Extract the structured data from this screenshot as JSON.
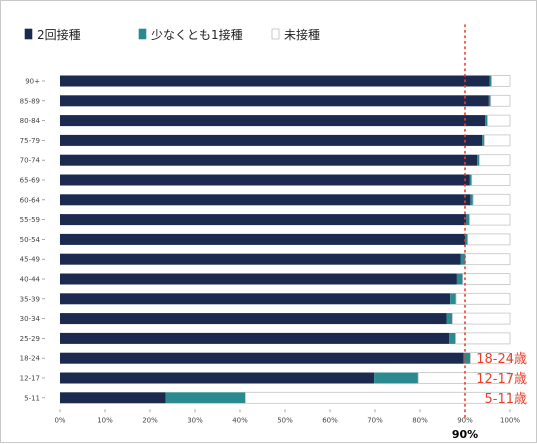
{
  "chart_data": {
    "type": "bar",
    "orientation": "horizontal",
    "stacked": true,
    "categories": [
      "90+",
      "85-89",
      "80-84",
      "75-79",
      "70-74",
      "65-69",
      "60-64",
      "55-59",
      "50-54",
      "45-49",
      "40-44",
      "35-39",
      "30-34",
      "25-29",
      "18-24",
      "12-17",
      "5-11"
    ],
    "series": [
      {
        "name": "2回接種",
        "color": "#1b2a4e",
        "values": [
          95.5,
          95.3,
          94.5,
          93.8,
          92.7,
          91.0,
          91.2,
          90.3,
          90.0,
          89.0,
          88.2,
          86.7,
          85.9,
          86.5,
          89.7,
          69.8,
          23.5
        ]
      },
      {
        "name": "少なくとも1接種",
        "color": "#2a8a8f",
        "values": [
          0.4,
          0.4,
          0.5,
          0.5,
          0.5,
          0.5,
          0.6,
          0.7,
          0.6,
          1.1,
          1.3,
          1.3,
          1.3,
          1.4,
          1.5,
          9.8,
          17.7
        ]
      },
      {
        "name": "未接種",
        "color": "#ffffff",
        "values": [
          4.1,
          4.3,
          5.0,
          5.7,
          6.8,
          8.5,
          8.2,
          9.0,
          9.4,
          9.9,
          10.5,
          12.0,
          12.8,
          12.1,
          8.8,
          20.4,
          58.8
        ]
      }
    ],
    "xlim": [
      0,
      100
    ],
    "xticks": [
      "0%",
      "10%",
      "20%",
      "30%",
      "40%",
      "50%",
      "60%",
      "70%",
      "80%",
      "90%",
      "100%"
    ],
    "reference_line": {
      "value": 90,
      "label": "90%",
      "color": "#e8402a"
    },
    "annotations": [
      {
        "category": "18-24",
        "text": "18-24歳"
      },
      {
        "category": "12-17",
        "text": "12-17歳"
      },
      {
        "category": "5-11",
        "text": "5-11歳"
      }
    ],
    "legend_position": "top-left",
    "grid": false
  }
}
